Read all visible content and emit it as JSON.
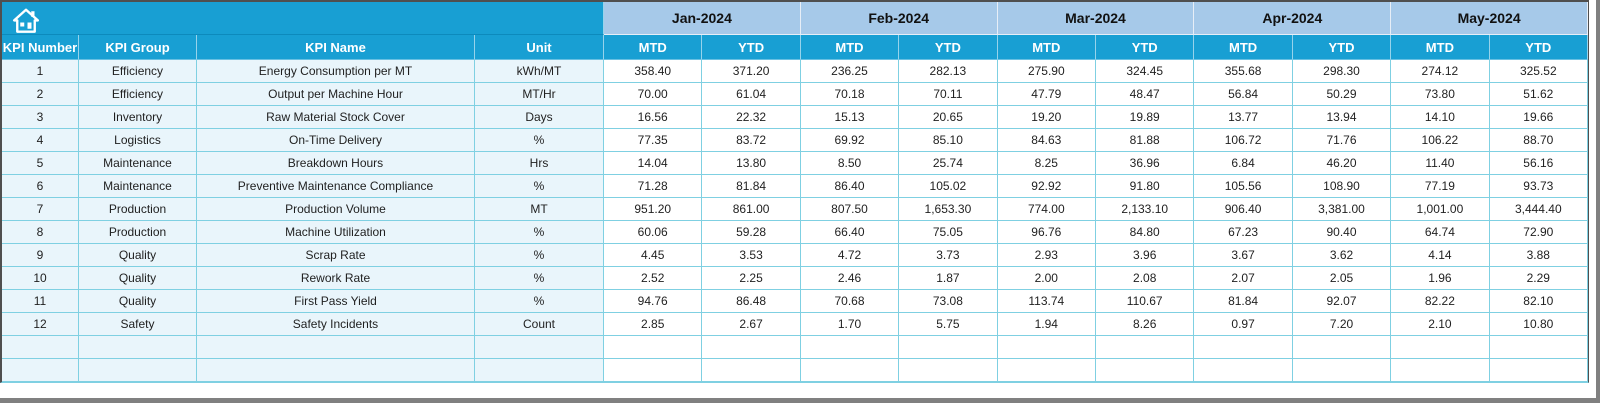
{
  "table": {
    "corner": {
      "icon": "home-icon"
    },
    "left_headers": [
      "KPI Number",
      "KPI Group",
      "KPI Name",
      "Unit"
    ],
    "months": [
      "Jan-2024",
      "Feb-2024",
      "Mar-2024",
      "Apr-2024",
      "May-2024"
    ],
    "sub_headers": [
      "MTD",
      "YTD"
    ],
    "rows": [
      {
        "number": "1",
        "group": "Efficiency",
        "name": "Energy Consumption per MT",
        "unit": "kWh/MT",
        "values": [
          "358.40",
          "371.20",
          "236.25",
          "282.13",
          "275.90",
          "324.45",
          "355.68",
          "298.30",
          "274.12",
          "325.52"
        ]
      },
      {
        "number": "2",
        "group": "Efficiency",
        "name": "Output per Machine Hour",
        "unit": "MT/Hr",
        "values": [
          "70.00",
          "61.04",
          "70.18",
          "70.11",
          "47.79",
          "48.47",
          "56.84",
          "50.29",
          "73.80",
          "51.62"
        ]
      },
      {
        "number": "3",
        "group": "Inventory",
        "name": "Raw Material Stock Cover",
        "unit": "Days",
        "values": [
          "16.56",
          "22.32",
          "15.13",
          "20.65",
          "19.20",
          "19.89",
          "13.77",
          "13.94",
          "14.10",
          "19.66"
        ]
      },
      {
        "number": "4",
        "group": "Logistics",
        "name": "On-Time Delivery",
        "unit": "%",
        "values": [
          "77.35",
          "83.72",
          "69.92",
          "85.10",
          "84.63",
          "81.88",
          "106.72",
          "71.76",
          "106.22",
          "88.70"
        ]
      },
      {
        "number": "5",
        "group": "Maintenance",
        "name": "Breakdown Hours",
        "unit": "Hrs",
        "values": [
          "14.04",
          "13.80",
          "8.50",
          "25.74",
          "8.25",
          "36.96",
          "6.84",
          "46.20",
          "11.40",
          "56.16"
        ]
      },
      {
        "number": "6",
        "group": "Maintenance",
        "name": "Preventive Maintenance Compliance",
        "unit": "%",
        "values": [
          "71.28",
          "81.84",
          "86.40",
          "105.02",
          "92.92",
          "91.80",
          "105.56",
          "108.90",
          "77.19",
          "93.73"
        ]
      },
      {
        "number": "7",
        "group": "Production",
        "name": "Production Volume",
        "unit": "MT",
        "values": [
          "951.20",
          "861.00",
          "807.50",
          "1,653.30",
          "774.00",
          "2,133.10",
          "906.40",
          "3,381.00",
          "1,001.00",
          "3,444.40"
        ]
      },
      {
        "number": "8",
        "group": "Production",
        "name": "Machine Utilization",
        "unit": "%",
        "values": [
          "60.06",
          "59.28",
          "66.40",
          "75.05",
          "96.76",
          "84.80",
          "67.23",
          "90.40",
          "64.74",
          "72.90"
        ]
      },
      {
        "number": "9",
        "group": "Quality",
        "name": "Scrap Rate",
        "unit": "%",
        "values": [
          "4.45",
          "3.53",
          "4.72",
          "3.73",
          "2.93",
          "3.96",
          "3.67",
          "3.62",
          "4.14",
          "3.88"
        ]
      },
      {
        "number": "10",
        "group": "Quality",
        "name": "Rework Rate",
        "unit": "%",
        "values": [
          "2.52",
          "2.25",
          "2.46",
          "1.87",
          "2.00",
          "2.08",
          "2.07",
          "2.05",
          "1.96",
          "2.29"
        ]
      },
      {
        "number": "11",
        "group": "Quality",
        "name": "First Pass Yield",
        "unit": "%",
        "values": [
          "94.76",
          "86.48",
          "70.68",
          "73.08",
          "113.74",
          "110.67",
          "81.84",
          "92.07",
          "82.22",
          "82.10"
        ]
      },
      {
        "number": "12",
        "group": "Safety",
        "name": "Safety Incidents",
        "unit": "Count",
        "values": [
          "2.85",
          "2.67",
          "1.70",
          "5.75",
          "1.94",
          "8.26",
          "0.97",
          "7.20",
          "2.10",
          "10.80"
        ]
      }
    ],
    "empty_rows": 2,
    "colors": {
      "header_cyan": "#189fd3",
      "month_band": "#a6c9e9",
      "left_tint": "#e9f5fb",
      "grid_line": "#7fd0e2",
      "value_bg": "#ffffff",
      "header_text": "#ffffff",
      "month_text": "#111111",
      "data_text": "#1f1f1f",
      "window_edge": "#808080"
    }
  }
}
